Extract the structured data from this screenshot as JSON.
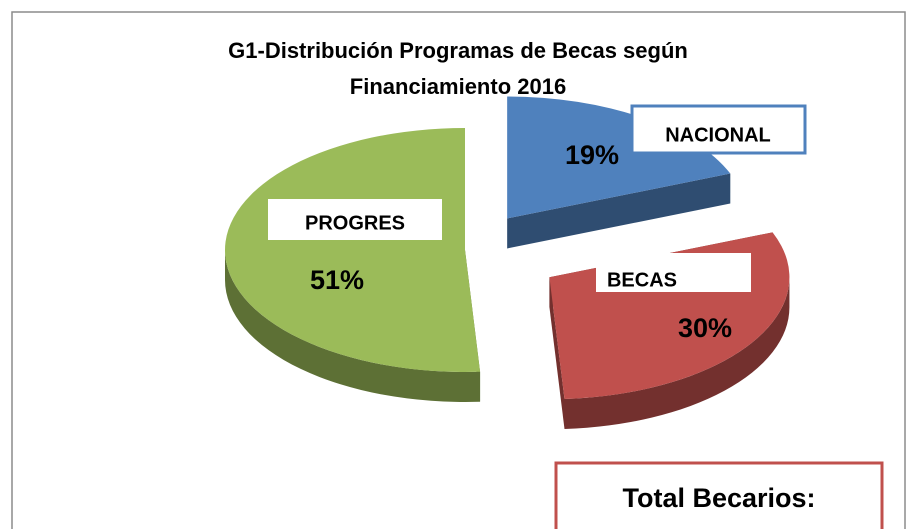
{
  "chart_data": {
    "type": "pie",
    "title": [
      "G1-Distribución  Programas de Becas  según",
      "Financiamiento 2016"
    ],
    "categories": [
      "NACIONAL",
      "BECAS",
      "PROGRES"
    ],
    "values": [
      19,
      30,
      51
    ],
    "value_labels": [
      "19%",
      "30%",
      "51%"
    ],
    "colors": [
      "#4f81bd",
      "#c0504d",
      "#9bbb59"
    ],
    "annotation": "Total Becarios:"
  }
}
